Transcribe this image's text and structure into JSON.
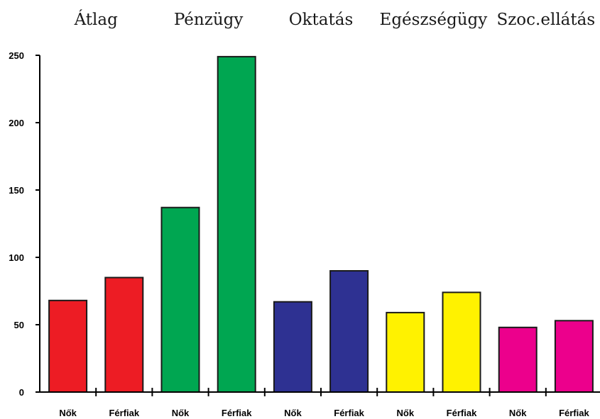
{
  "chart_data": {
    "type": "bar",
    "group_titles": [
      "Átlag",
      "Pénzügy",
      "Oktatás",
      "Egészségügy",
      "Szoc.ellátás"
    ],
    "categories": [
      "Nők",
      "Férfiak",
      "Nők",
      "Férfiak",
      "Nők",
      "Férfiak",
      "Nők",
      "Férfiak",
      "Nők",
      "Férfiak"
    ],
    "values": [
      68,
      85,
      137,
      249,
      67,
      90,
      59,
      74,
      48,
      53
    ],
    "bar_colors": [
      "#ed1c24",
      "#ed1c24",
      "#00a651",
      "#00a651",
      "#2e3192",
      "#2e3192",
      "#fff200",
      "#fff200",
      "#ec008c",
      "#ec008c"
    ],
    "yticks": [
      0,
      50,
      100,
      150,
      200,
      250
    ],
    "ylim": [
      0,
      250
    ],
    "title": "",
    "xlabel": "",
    "ylabel": "",
    "grid": false
  }
}
